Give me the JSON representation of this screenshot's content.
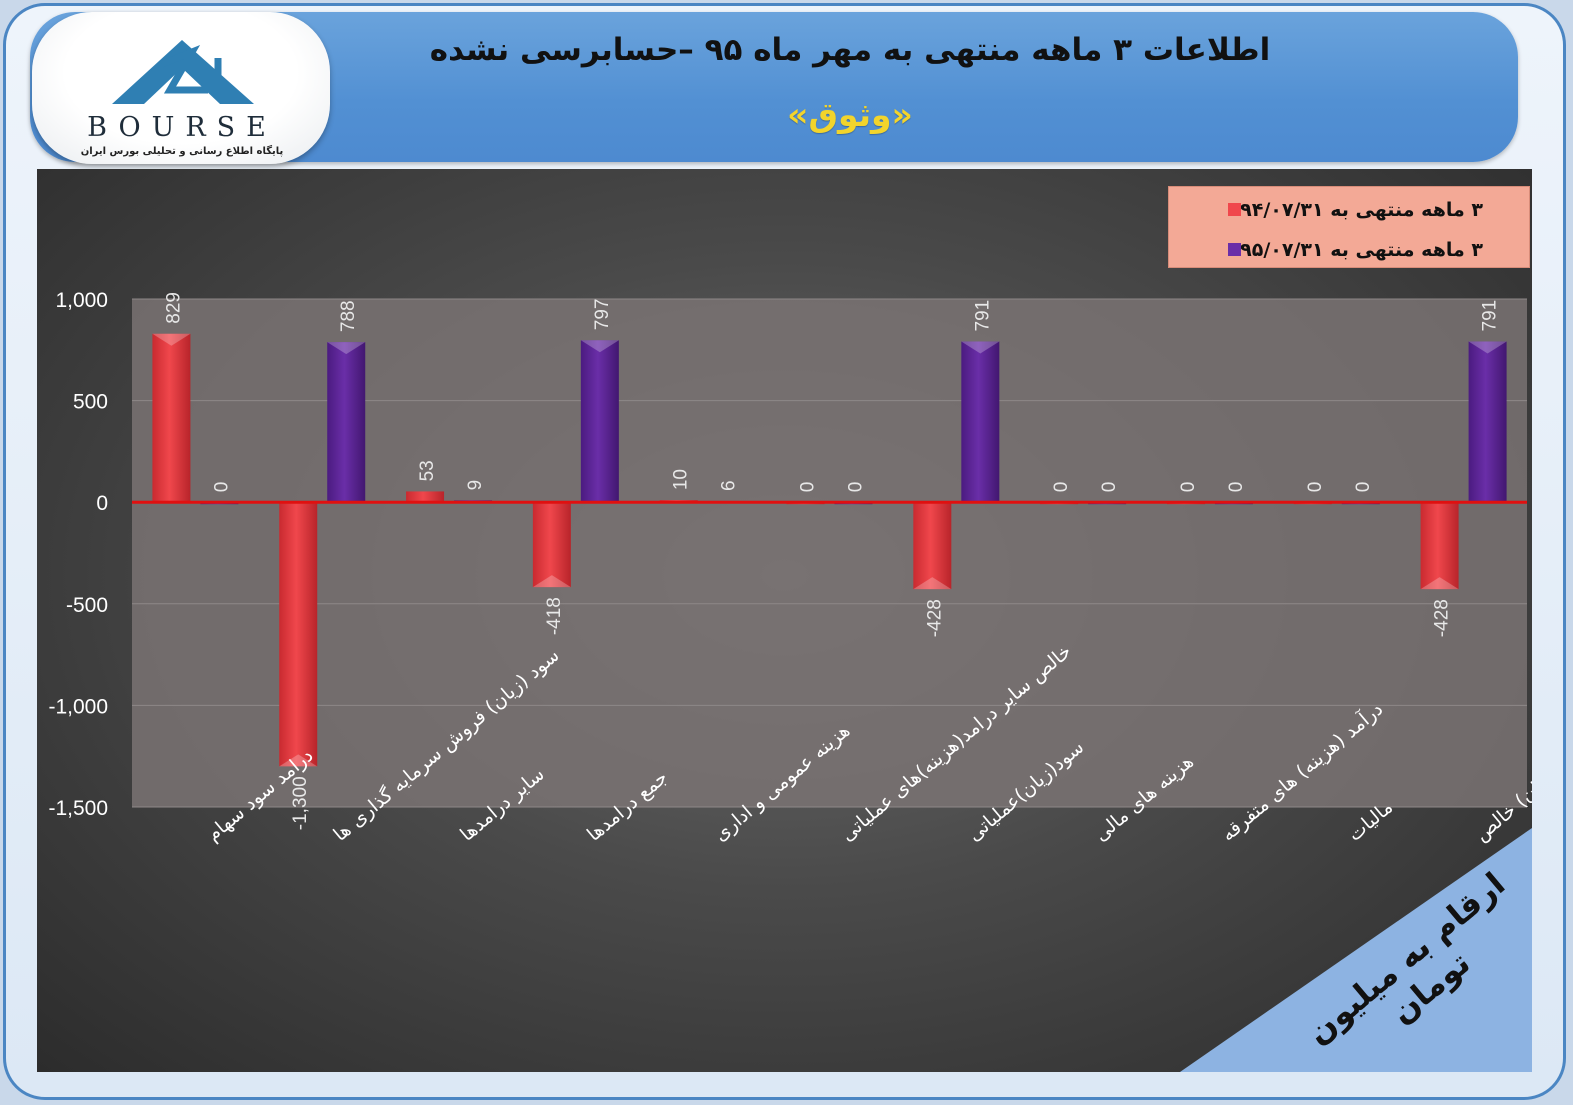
{
  "header": {
    "title": "اطلاعات ۳  ماهه منتهی به مهر ماه ۹۵ –حسابرسی نشده",
    "subtitle": "«وثوق»"
  },
  "logo": {
    "text": "BOURSE",
    "subtitle": "پایگاه اطلاع رسانی و تحلیلی بورس ایران"
  },
  "unit_label": "ارقام به میلیون تومان",
  "colors": {
    "series1": "#f0474c",
    "series2": "#6a2ea8",
    "zero_line": "#e01010",
    "plot_area": "#7a7373",
    "legend_bg": "#f3a996"
  },
  "chart_data": {
    "type": "bar",
    "categories": [
      "درامد سود سهام",
      "سود (زیان) فروش سرمایه گذاری ها",
      "سایر درامدها",
      "جمع درامدها",
      "هزینه عمومی و اداری",
      "خالص سایر درامد(هزینه)های عملیاتی",
      "سود(زیان)عملیاتی",
      "هزینه های مالی",
      "درآمد (هزینه) های متفرقه",
      "مالیات",
      "سود(زیان) خالص"
    ],
    "series": [
      {
        "name": "۳ ماهه منتهی به ۹۴/۰۷/۳۱",
        "values": [
          829,
          -1300,
          53,
          -418,
          10,
          0,
          -428,
          0,
          0,
          0,
          -428
        ]
      },
      {
        "name": "۳ ماهه منتهی به ۹۵/۰۷/۳۱",
        "values": [
          0,
          788,
          9,
          797,
          6,
          0,
          791,
          0,
          0,
          0,
          791
        ]
      }
    ],
    "value_labels": [
      [
        "829",
        "-1,300",
        "53",
        "-418",
        "10",
        "0",
        "-428",
        "0",
        "0",
        "0",
        "-428"
      ],
      [
        "0",
        "788",
        "9",
        "797",
        "6",
        "0",
        "791",
        "0",
        "0",
        "0",
        "791"
      ]
    ],
    "yticks": [
      "1,000",
      "500",
      "0",
      "-500",
      "-1,000",
      "-1,500"
    ],
    "ytick_values": [
      1000,
      500,
      0,
      -500,
      -1000,
      -1500
    ],
    "ylim": [
      -1500,
      1000
    ],
    "legend": "top-right",
    "grid": true
  }
}
